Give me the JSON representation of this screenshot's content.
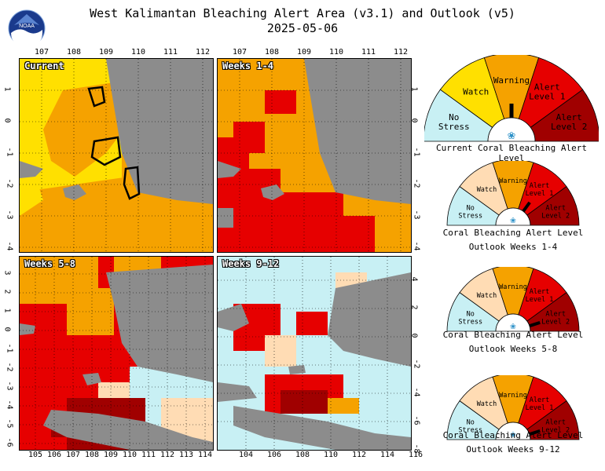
{
  "header": {
    "title": "West Kalimantan Bleaching Alert Area (v3.1) and Outlook (v5)",
    "date": "2025-05-06",
    "logo_text": "NOAA"
  },
  "colors": {
    "no_stress": "#c8f0f4",
    "watch": "#ffe000",
    "warning": "#f5a200",
    "alert1": "#e60000",
    "alert2": "#a00000",
    "outlook_watch": "#ffdcb4",
    "land": "#8c8c8c",
    "ocean_mask": "#ffffff"
  },
  "panels": [
    {
      "label": "Current",
      "lon_ticks": [
        "107",
        "108",
        "109",
        "110",
        "111",
        "112"
      ],
      "lat_ticks": [
        "1",
        "0",
        "-1",
        "-2",
        "-3",
        "-4"
      ]
    },
    {
      "label": "Weeks 1-4",
      "lon_ticks": [
        "107",
        "108",
        "109",
        "110",
        "111",
        "112"
      ],
      "lat_ticks": [
        "1",
        "0",
        "-1",
        "-2",
        "-3",
        "-4"
      ]
    },
    {
      "label": "Weeks 5-8",
      "lon_ticks": [
        "105",
        "106",
        "107",
        "108",
        "109",
        "110",
        "111",
        "112",
        "113",
        "114"
      ],
      "lat_ticks": [
        "3",
        "2",
        "1",
        "0",
        "-1",
        "-2",
        "-3",
        "-4",
        "-5",
        "-6"
      ]
    },
    {
      "label": "Weeks 9-12",
      "lon_ticks": [
        "104",
        "106",
        "108",
        "110",
        "112",
        "114",
        "116"
      ],
      "lat_ticks": [
        "4",
        "2",
        "0",
        "-2",
        "-4",
        "-6",
        "-8"
      ]
    }
  ],
  "gauges": [
    {
      "caption1": "Current Coral Bleaching Alert Level",
      "caption2": "",
      "level": "Warning",
      "labels": {
        "no_stress": "No Stress",
        "watch": "Watch",
        "warning": "Warning",
        "alert1": "Alert Level 1",
        "alert2": "Alert Level 2"
      }
    },
    {
      "caption1": "Coral Bleaching Alert Level",
      "caption2": "Outlook Weeks 1-4",
      "level": "Alert Level 1",
      "labels": {
        "no_stress": "No Stress",
        "watch": "Watch",
        "warning": "Warning",
        "alert1": "Alert Level 1",
        "alert2": "Alert Level 2"
      }
    },
    {
      "caption1": "Coral Bleaching Alert Level",
      "caption2": "Outlook Weeks 5-8",
      "level": "Alert Level 2",
      "labels": {
        "no_stress": "No Stress",
        "watch": "Watch",
        "warning": "Warning",
        "alert1": "Alert Level 1",
        "alert2": "Alert Level 2"
      }
    },
    {
      "caption1": "Coral Bleaching Alert Level",
      "caption2": "Outlook Weeks 9-12",
      "level": "Alert Level 2",
      "labels": {
        "no_stress": "No Stress",
        "watch": "Watch",
        "warning": "Warning",
        "alert1": "Alert Level 1",
        "alert2": "Alert Level 2"
      }
    }
  ]
}
